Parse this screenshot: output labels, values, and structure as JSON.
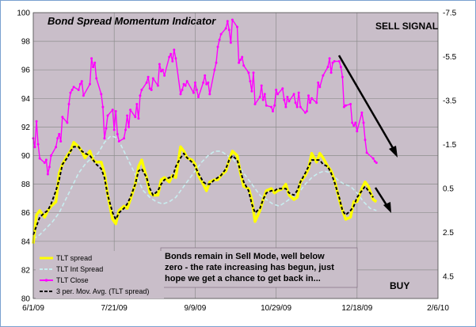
{
  "chart_data": {
    "type": "line",
    "title": "Bond Spread Momentum Indicator",
    "x_ticks": [
      "6/1/09",
      "7/21/09",
      "9/9/09",
      "10/29/09",
      "12/18/09",
      "2/6/10"
    ],
    "x_range": [
      "2009-06-01",
      "2010-02-06"
    ],
    "y_left": {
      "min": 80,
      "max": 100,
      "step": 2,
      "ticks": [
        "80",
        "82",
        "84",
        "86",
        "88",
        "90",
        "92",
        "94",
        "96",
        "98",
        "100"
      ]
    },
    "y_right": {
      "min": -7.5,
      "max": 5.5,
      "inverted": true,
      "ticks": [
        "-7.5",
        "-5.5",
        "-3.5",
        "-1.5",
        "0.5",
        "2.5",
        "4.5"
      ]
    },
    "grid": true,
    "legend_position": "bottom-left",
    "annotations": {
      "sell": "SELL SIGNAL",
      "buy": "BUY",
      "note": [
        "Bonds remain in Sell Mode, well below",
        "zero - the rate increasing has begun, just",
        "hope we get a chance to get back in..."
      ]
    },
    "series": [
      {
        "name": "TLT spread",
        "axis": "right",
        "color": "#ffff00",
        "x": [
          "2009-06-01",
          "2009-06-03",
          "2009-06-05",
          "2009-06-08",
          "2009-06-10",
          "2009-06-12",
          "2009-06-15",
          "2009-06-17",
          "2009-06-19",
          "2009-06-22",
          "2009-06-24",
          "2009-06-26",
          "2009-06-29",
          "2009-07-01",
          "2009-07-03",
          "2009-07-06",
          "2009-07-08",
          "2009-07-10",
          "2009-07-13",
          "2009-07-15",
          "2009-07-17",
          "2009-07-20",
          "2009-07-22",
          "2009-07-24",
          "2009-07-27",
          "2009-07-29",
          "2009-07-31",
          "2009-08-03",
          "2009-08-05",
          "2009-08-07",
          "2009-08-10",
          "2009-08-12",
          "2009-08-14",
          "2009-08-17",
          "2009-08-19",
          "2009-08-21",
          "2009-08-24",
          "2009-08-26",
          "2009-08-28",
          "2009-08-31",
          "2009-09-02",
          "2009-09-04",
          "2009-09-07",
          "2009-09-09",
          "2009-09-11",
          "2009-09-14",
          "2009-09-16",
          "2009-09-18",
          "2009-09-21",
          "2009-09-23",
          "2009-09-25",
          "2009-09-28",
          "2009-09-30",
          "2009-10-02",
          "2009-10-05",
          "2009-10-07",
          "2009-10-09",
          "2009-10-12",
          "2009-10-14",
          "2009-10-16",
          "2009-10-19",
          "2009-10-21",
          "2009-10-23",
          "2009-10-26",
          "2009-10-28",
          "2009-10-30",
          "2009-11-02",
          "2009-11-04",
          "2009-11-06",
          "2009-11-09",
          "2009-11-11",
          "2009-11-13",
          "2009-11-16",
          "2009-11-18",
          "2009-11-20",
          "2009-11-23",
          "2009-11-25",
          "2009-11-27",
          "2009-11-30",
          "2009-12-02",
          "2009-12-04",
          "2009-12-07",
          "2009-12-09",
          "2009-12-11",
          "2009-12-14",
          "2009-12-16",
          "2009-12-18",
          "2009-12-21",
          "2009-12-23",
          "2009-12-25",
          "2009-12-28",
          "2009-12-30"
        ],
        "values": [
          3.0,
          1.7,
          1.5,
          1.8,
          1.5,
          1.3,
          1.1,
          -0.2,
          -0.6,
          -1.0,
          -1.2,
          -1.6,
          -1.4,
          -1.2,
          -0.9,
          -1.2,
          -0.8,
          -0.7,
          -0.7,
          -0.2,
          0.8,
          1.9,
          2.1,
          1.5,
          1.3,
          1.4,
          1.0,
          0.3,
          -0.5,
          -0.8,
          0.0,
          0.7,
          0.8,
          0.8,
          0.1,
          0.0,
          0.2,
          -0.1,
          0.0,
          -1.4,
          -1.2,
          -0.9,
          -0.8,
          -0.6,
          -0.1,
          0.3,
          0.6,
          0.2,
          0.1,
          0.1,
          -0.1,
          -0.3,
          -0.8,
          -1.2,
          -1.0,
          -0.2,
          0.4,
          0.5,
          1.0,
          2.0,
          1.5,
          1.0,
          0.6,
          0.5,
          0.7,
          0.6,
          0.5,
          0.3,
          0.8,
          1.0,
          0.9,
          0.2,
          -0.1,
          -0.4,
          -1.1,
          -0.7,
          -1.1,
          -0.9,
          -0.5,
          -0.3,
          0.1,
          1.0,
          1.5,
          1.9,
          1.8,
          1.1,
          1.1,
          0.5,
          0.2,
          0.4,
          1.0,
          1.1
        ]
      },
      {
        "name": "TLT Int Spread",
        "axis": "right",
        "color": "#c8eef0",
        "x": [
          "2009-06-01",
          "2009-06-05",
          "2009-06-09",
          "2009-06-13",
          "2009-06-17",
          "2009-06-21",
          "2009-06-25",
          "2009-06-29",
          "2009-07-03",
          "2009-07-07",
          "2009-07-11",
          "2009-07-15",
          "2009-07-19",
          "2009-07-23",
          "2009-07-27",
          "2009-07-31",
          "2009-08-04",
          "2009-08-08",
          "2009-08-12",
          "2009-08-16",
          "2009-08-20",
          "2009-08-24",
          "2009-08-28",
          "2009-09-01",
          "2009-09-05",
          "2009-09-09",
          "2009-09-13",
          "2009-09-17",
          "2009-09-21",
          "2009-09-25",
          "2009-09-29",
          "2009-10-03",
          "2009-10-07",
          "2009-10-11",
          "2009-10-15",
          "2009-10-19",
          "2009-10-23",
          "2009-10-27",
          "2009-10-31",
          "2009-11-04",
          "2009-11-08",
          "2009-11-12",
          "2009-11-16",
          "2009-11-20",
          "2009-11-24",
          "2009-11-28",
          "2009-12-02",
          "2009-12-06",
          "2009-12-10",
          "2009-12-14",
          "2009-12-18",
          "2009-12-22",
          "2009-12-26",
          "2009-12-30"
        ],
        "values": [
          2.8,
          2.6,
          2.3,
          2.0,
          1.6,
          1.0,
          0.4,
          -0.2,
          -0.6,
          -0.9,
          -1.1,
          -1.6,
          -1.9,
          -1.8,
          -1.2,
          -0.6,
          0.0,
          0.6,
          0.9,
          1.1,
          1.2,
          1.1,
          0.9,
          0.5,
          0.1,
          -0.3,
          -0.7,
          -1.0,
          -1.2,
          -1.2,
          -1.0,
          -0.8,
          -0.4,
          0.0,
          0.4,
          0.8,
          1.0,
          1.2,
          1.3,
          1.1,
          0.9,
          0.7,
          0.3,
          0.0,
          -0.2,
          -0.3,
          -0.2,
          0.1,
          0.3,
          0.4,
          0.7,
          1.1,
          1.4,
          1.5
        ]
      },
      {
        "name": "TLT Close",
        "axis": "left",
        "color": "#ff00ff",
        "x": [
          "2009-06-01",
          "2009-06-02",
          "2009-06-03",
          "2009-06-04",
          "2009-06-05",
          "2009-06-08",
          "2009-06-09",
          "2009-06-10",
          "2009-06-11",
          "2009-06-12",
          "2009-06-15",
          "2009-06-16",
          "2009-06-17",
          "2009-06-18",
          "2009-06-19",
          "2009-06-22",
          "2009-06-23",
          "2009-06-24",
          "2009-06-25",
          "2009-06-26",
          "2009-06-29",
          "2009-06-30",
          "2009-07-01",
          "2009-07-02",
          "2009-07-06",
          "2009-07-07",
          "2009-07-08",
          "2009-07-09",
          "2009-07-10",
          "2009-07-13",
          "2009-07-14",
          "2009-07-15",
          "2009-07-16",
          "2009-07-17",
          "2009-07-20",
          "2009-07-21",
          "2009-07-22",
          "2009-07-23",
          "2009-07-24",
          "2009-07-27",
          "2009-07-28",
          "2009-07-29",
          "2009-07-30",
          "2009-07-31",
          "2009-08-03",
          "2009-08-04",
          "2009-08-05",
          "2009-08-06",
          "2009-08-07",
          "2009-08-10",
          "2009-08-11",
          "2009-08-12",
          "2009-08-13",
          "2009-08-14",
          "2009-08-17",
          "2009-08-18",
          "2009-08-19",
          "2009-08-20",
          "2009-08-21",
          "2009-08-24",
          "2009-08-25",
          "2009-08-26",
          "2009-08-27",
          "2009-08-28",
          "2009-08-31",
          "2009-09-01",
          "2009-09-02",
          "2009-09-03",
          "2009-09-04",
          "2009-09-08",
          "2009-09-09",
          "2009-09-10",
          "2009-09-11",
          "2009-09-14",
          "2009-09-15",
          "2009-09-16",
          "2009-09-17",
          "2009-09-18",
          "2009-09-21",
          "2009-09-22",
          "2009-09-23",
          "2009-09-24",
          "2009-09-25",
          "2009-09-28",
          "2009-09-29",
          "2009-09-30",
          "2009-10-01",
          "2009-10-02",
          "2009-10-05",
          "2009-10-06",
          "2009-10-07",
          "2009-10-08",
          "2009-10-09",
          "2009-10-12",
          "2009-10-13",
          "2009-10-14",
          "2009-10-15",
          "2009-10-16",
          "2009-10-19",
          "2009-10-20",
          "2009-10-21",
          "2009-10-22",
          "2009-10-23",
          "2009-10-26",
          "2009-10-27",
          "2009-10-28",
          "2009-10-29",
          "2009-10-30",
          "2009-11-02",
          "2009-11-03",
          "2009-11-04",
          "2009-11-05",
          "2009-11-06",
          "2009-11-09",
          "2009-11-10",
          "2009-11-11",
          "2009-11-12",
          "2009-11-13",
          "2009-11-16",
          "2009-11-17",
          "2009-11-18",
          "2009-11-19",
          "2009-11-20",
          "2009-11-23",
          "2009-11-24",
          "2009-11-25",
          "2009-11-27",
          "2009-11-30",
          "2009-12-01",
          "2009-12-02",
          "2009-12-03",
          "2009-12-04",
          "2009-12-07",
          "2009-12-08",
          "2009-12-09",
          "2009-12-10",
          "2009-12-11",
          "2009-12-14",
          "2009-12-15",
          "2009-12-16",
          "2009-12-17",
          "2009-12-18",
          "2009-12-21",
          "2009-12-22",
          "2009-12-23",
          "2009-12-24",
          "2009-12-28",
          "2009-12-29",
          "2009-12-30"
        ],
        "values": [
          91.2,
          90.6,
          92.4,
          90.8,
          89.8,
          89.5,
          89.7,
          88.7,
          89.2,
          90.0,
          90.6,
          91.2,
          91.5,
          91.0,
          92.7,
          92.3,
          93.6,
          94.4,
          94.6,
          94.8,
          94.6,
          95.0,
          95.2,
          94.2,
          95.0,
          96.8,
          96.2,
          96.5,
          95.4,
          94.3,
          93.4,
          91.2,
          91.9,
          92.8,
          93.2,
          91.8,
          93.1,
          91.5,
          91.0,
          91.2,
          91.8,
          92.8,
          92.0,
          93.2,
          92.7,
          93.6,
          92.6,
          94.2,
          94.6,
          95.1,
          95.5,
          94.7,
          94.6,
          95.4,
          94.9,
          96.4,
          95.9,
          96.0,
          95.6,
          96.9,
          97.1,
          96.6,
          97.4,
          96.8,
          94.3,
          94.6,
          95.0,
          94.9,
          95.2,
          94.4,
          95.1,
          94.6,
          94.1,
          95.1,
          95.6,
          95.0,
          95.1,
          94.3,
          96.0,
          96.5,
          97.6,
          98.1,
          98.5,
          98.9,
          99.4,
          98.8,
          97.9,
          99.5,
          99.0,
          96.5,
          96.7,
          96.9,
          96.3,
          95.8,
          95.2,
          94.5,
          95.8,
          93.6,
          94.1,
          94.9,
          93.9,
          94.3,
          93.5,
          93.4,
          93.1,
          93.5,
          94.6,
          94.3,
          94.7,
          93.9,
          93.4,
          94.1,
          93.8,
          94.3,
          93.7,
          93.4,
          94.4,
          93.4,
          93.0,
          93.1,
          94.2,
          93.7,
          94.0,
          93.7,
          95.1,
          94.8,
          95.6,
          96.2,
          96.8,
          95.8,
          96.5,
          96.6,
          96.6,
          96.2,
          95.5,
          93.4,
          93.5,
          93.6,
          92.3,
          92.1,
          92.3,
          91.7,
          93.0,
          92.3,
          91.1,
          90.2,
          89.8,
          89.6,
          89.5
        ]
      },
      {
        "name": "3 per. Mov. Avg. (TLT spread)",
        "axis": "right",
        "color": "#000000",
        "x": [
          "2009-06-01",
          "2009-06-03",
          "2009-06-05",
          "2009-06-08",
          "2009-06-10",
          "2009-06-12",
          "2009-06-15",
          "2009-06-17",
          "2009-06-19",
          "2009-06-22",
          "2009-06-24",
          "2009-06-26",
          "2009-06-29",
          "2009-07-01",
          "2009-07-03",
          "2009-07-06",
          "2009-07-08",
          "2009-07-10",
          "2009-07-13",
          "2009-07-15",
          "2009-07-17",
          "2009-07-20",
          "2009-07-22",
          "2009-07-24",
          "2009-07-27",
          "2009-07-29",
          "2009-07-31",
          "2009-08-03",
          "2009-08-05",
          "2009-08-07",
          "2009-08-10",
          "2009-08-12",
          "2009-08-14",
          "2009-08-17",
          "2009-08-19",
          "2009-08-21",
          "2009-08-24",
          "2009-08-26",
          "2009-08-28",
          "2009-08-31",
          "2009-09-02",
          "2009-09-04",
          "2009-09-07",
          "2009-09-09",
          "2009-09-11",
          "2009-09-14",
          "2009-09-16",
          "2009-09-18",
          "2009-09-21",
          "2009-09-23",
          "2009-09-25",
          "2009-09-28",
          "2009-09-30",
          "2009-10-02",
          "2009-10-05",
          "2009-10-07",
          "2009-10-09",
          "2009-10-12",
          "2009-10-14",
          "2009-10-16",
          "2009-10-19",
          "2009-10-21",
          "2009-10-23",
          "2009-10-26",
          "2009-10-28",
          "2009-10-30",
          "2009-11-02",
          "2009-11-04",
          "2009-11-06",
          "2009-11-09",
          "2009-11-11",
          "2009-11-13",
          "2009-11-16",
          "2009-11-18",
          "2009-11-20",
          "2009-11-23",
          "2009-11-25",
          "2009-11-27",
          "2009-11-30",
          "2009-12-02",
          "2009-12-04",
          "2009-12-07",
          "2009-12-09",
          "2009-12-11",
          "2009-12-14",
          "2009-12-16",
          "2009-12-18",
          "2009-12-21",
          "2009-12-23",
          "2009-12-25",
          "2009-12-28"
        ],
        "values": [
          2.6,
          2.2,
          1.8,
          1.6,
          1.5,
          1.2,
          0.6,
          0.1,
          -0.6,
          -0.9,
          -1.2,
          -1.4,
          -1.4,
          -1.2,
          -1.1,
          -1.0,
          -0.8,
          -0.6,
          -0.4,
          0.0,
          0.8,
          1.6,
          1.9,
          1.6,
          1.4,
          1.2,
          0.9,
          0.3,
          -0.3,
          -0.4,
          0.0,
          0.5,
          0.8,
          0.6,
          0.3,
          0.1,
          0.0,
          0.0,
          -0.5,
          -0.9,
          -1.1,
          -0.9,
          -0.7,
          -0.5,
          -0.2,
          0.2,
          0.3,
          0.3,
          0.1,
          0.0,
          -0.1,
          -0.4,
          -0.8,
          -1.0,
          -0.8,
          -0.3,
          0.2,
          0.6,
          1.2,
          1.6,
          1.4,
          1.0,
          0.7,
          0.6,
          0.6,
          0.5,
          0.5,
          0.5,
          0.7,
          0.8,
          0.6,
          0.2,
          -0.2,
          -0.5,
          -0.8,
          -0.8,
          -0.8,
          -0.6,
          -0.5,
          -0.2,
          0.2,
          0.9,
          1.5,
          1.7,
          1.5,
          1.3,
          0.9,
          0.6,
          0.4,
          0.6,
          0.9
        ]
      }
    ]
  }
}
